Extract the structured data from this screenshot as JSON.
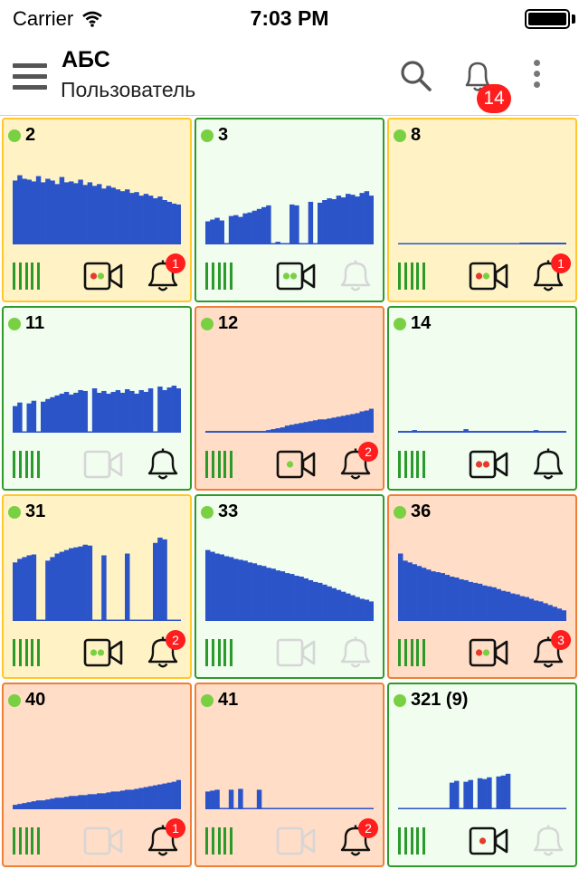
{
  "status_bar": {
    "carrier": "Carrier",
    "time": "7:03 PM"
  },
  "header": {
    "title": "АБС",
    "subtitle": "Пользователь",
    "badge": "14"
  },
  "colors": {
    "warn_bg": "#fff3c6",
    "warn_border": "#ffc72a",
    "ok_bg": "#f0fdef",
    "ok_border": "#2f9a2a",
    "alarm_bg": "#ffddc6",
    "alarm_border": "#ef7f36",
    "chart": "#2c54c9",
    "signal": "#2a9b2a",
    "badge": "#ff1d1d"
  },
  "tiles": [
    {
      "label": "2",
      "status": "warn",
      "camera": "active",
      "camera_dots": [
        "red",
        "green"
      ],
      "bell": "active",
      "badge": "1",
      "chart_data": {
        "type": "bar",
        "max": 100,
        "values": [
          72,
          78,
          74,
          73,
          71,
          77,
          70,
          74,
          72,
          68,
          76,
          70,
          71,
          69,
          73,
          67,
          70,
          66,
          68,
          63,
          66,
          64,
          62,
          60,
          62,
          58,
          59,
          55,
          57,
          55,
          52,
          54,
          50,
          48,
          46,
          45
        ]
      }
    },
    {
      "label": "3",
      "status": "ok",
      "camera": "active",
      "camera_dots": [
        "green",
        "green"
      ],
      "bell": "inactive",
      "badge": "",
      "chart_data": {
        "type": "bar",
        "max": 100,
        "values": [
          26,
          28,
          30,
          27,
          0,
          32,
          33,
          31,
          35,
          36,
          38,
          40,
          42,
          44,
          0,
          3,
          0,
          0,
          45,
          44,
          0,
          0,
          48,
          0,
          47,
          50,
          52,
          51,
          55,
          53,
          57,
          56,
          54,
          58,
          60,
          55
        ]
      }
    },
    {
      "label": "8",
      "status": "warn",
      "camera": "active",
      "camera_dots": [
        "red",
        "green"
      ],
      "bell": "active",
      "badge": "1",
      "chart_data": {
        "type": "bar",
        "max": 100,
        "values": [
          0,
          0,
          0,
          0,
          0,
          0,
          0,
          0,
          0,
          0,
          0,
          0,
          0,
          0,
          0,
          0,
          0,
          0,
          0,
          0,
          0,
          0,
          0,
          0,
          0,
          0,
          2,
          2,
          2,
          2,
          2,
          2,
          2,
          2,
          2,
          2
        ]
      }
    },
    {
      "label": "11",
      "status": "ok",
      "camera": "inactive",
      "camera_dots": [],
      "bell": "active",
      "badge": "",
      "chart_data": {
        "type": "bar",
        "max": 100,
        "values": [
          30,
          34,
          0,
          33,
          36,
          0,
          35,
          38,
          40,
          42,
          44,
          46,
          43,
          45,
          48,
          47,
          0,
          50,
          45,
          47,
          44,
          46,
          48,
          45,
          49,
          47,
          44,
          48,
          46,
          50,
          0,
          52,
          48,
          51,
          53,
          50
        ]
      }
    },
    {
      "label": "12",
      "status": "alarm",
      "camera": "active",
      "camera_dots": [
        "green"
      ],
      "bell": "active",
      "badge": "2",
      "chart_data": {
        "type": "bar",
        "max": 100,
        "values": [
          2,
          2,
          2,
          2,
          2,
          2,
          2,
          2,
          2,
          2,
          2,
          2,
          2,
          3,
          4,
          5,
          6,
          8,
          9,
          10,
          11,
          12,
          13,
          14,
          15,
          15,
          16,
          17,
          18,
          19,
          20,
          21,
          22,
          24,
          25,
          27
        ]
      }
    },
    {
      "label": "14",
      "status": "ok",
      "camera": "active",
      "camera_dots": [
        "red",
        "red"
      ],
      "bell": "active",
      "badge": "",
      "chart_data": {
        "type": "bar",
        "max": 100,
        "values": [
          2,
          2,
          2,
          3,
          2,
          2,
          2,
          2,
          2,
          2,
          2,
          2,
          2,
          2,
          4,
          2,
          2,
          2,
          2,
          2,
          2,
          2,
          2,
          2,
          2,
          2,
          2,
          2,
          2,
          3,
          2,
          2,
          2,
          2,
          2,
          2
        ]
      }
    },
    {
      "label": "31",
      "status": "warn",
      "camera": "active",
      "camera_dots": [
        "green",
        "green"
      ],
      "bell": "active",
      "badge": "2",
      "chart_data": {
        "type": "bar",
        "max": 100,
        "values": [
          66,
          70,
          72,
          74,
          75,
          0,
          0,
          68,
          72,
          76,
          78,
          80,
          82,
          83,
          84,
          86,
          85,
          0,
          0,
          74,
          0,
          0,
          0,
          0,
          76,
          0,
          0,
          0,
          0,
          0,
          88,
          94,
          92,
          0,
          0,
          0
        ]
      }
    },
    {
      "label": "33",
      "status": "ok",
      "camera": "inactive",
      "camera_dots": [],
      "bell": "inactive",
      "badge": "",
      "chart_data": {
        "type": "bar",
        "max": 100,
        "values": [
          80,
          78,
          76,
          75,
          73,
          72,
          70,
          69,
          68,
          66,
          65,
          63,
          62,
          60,
          59,
          57,
          56,
          54,
          53,
          51,
          50,
          48,
          46,
          44,
          43,
          41,
          39,
          37,
          35,
          33,
          31,
          29,
          27,
          25,
          24,
          22
        ]
      }
    },
    {
      "label": "36",
      "status": "alarm",
      "camera": "active",
      "camera_dots": [
        "red",
        "green"
      ],
      "bell": "active",
      "badge": "3",
      "chart_data": {
        "type": "bar",
        "max": 100,
        "values": [
          76,
          68,
          66,
          64,
          62,
          60,
          58,
          56,
          55,
          54,
          52,
          50,
          49,
          47,
          46,
          44,
          43,
          42,
          40,
          39,
          38,
          36,
          34,
          33,
          31,
          30,
          28,
          27,
          25,
          23,
          22,
          20,
          18,
          16,
          14,
          12
        ]
      }
    },
    {
      "label": "40",
      "status": "alarm",
      "camera": "inactive",
      "camera_dots": [],
      "bell": "active",
      "badge": "1",
      "chart_data": {
        "type": "bar",
        "max": 100,
        "values": [
          5,
          6,
          7,
          8,
          9,
          10,
          10,
          11,
          12,
          13,
          13,
          14,
          15,
          15,
          16,
          16,
          17,
          17,
          18,
          18,
          19,
          20,
          20,
          21,
          22,
          22,
          23,
          24,
          25,
          26,
          27,
          28,
          29,
          30,
          31,
          33
        ]
      }
    },
    {
      "label": "41",
      "status": "alarm",
      "camera": "inactive",
      "camera_dots": [],
      "bell": "active",
      "badge": "2",
      "chart_data": {
        "type": "bar",
        "max": 100,
        "values": [
          20,
          21,
          22,
          0,
          0,
          22,
          0,
          23,
          0,
          0,
          0,
          22,
          0,
          0,
          0,
          0,
          0,
          0,
          0,
          0,
          0,
          0,
          0,
          0,
          0,
          0,
          0,
          0,
          0,
          0,
          0,
          0,
          0,
          0,
          0,
          0
        ]
      }
    },
    {
      "label": "321 (9)",
      "status": "ok",
      "camera": "active",
      "camera_dots": [
        "red"
      ],
      "bell": "inactive",
      "badge": "",
      "chart_data": {
        "type": "bar",
        "max": 100,
        "values": [
          0,
          0,
          0,
          0,
          0,
          0,
          0,
          0,
          0,
          0,
          0,
          30,
          32,
          0,
          31,
          33,
          0,
          35,
          34,
          36,
          0,
          37,
          38,
          40,
          0,
          0,
          0,
          0,
          0,
          0,
          0,
          0,
          0,
          0,
          0,
          0
        ]
      }
    }
  ]
}
